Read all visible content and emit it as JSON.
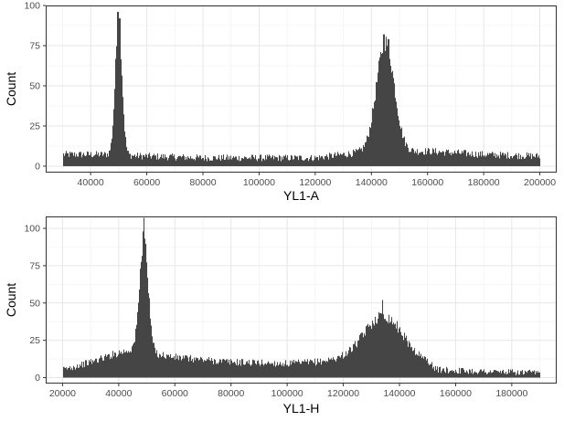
{
  "chart_data": [
    {
      "type": "histogram",
      "xlabel": "YL1-A",
      "ylabel": "Count",
      "xlim": [
        24000,
        206000
      ],
      "ylim": [
        -4,
        100
      ],
      "xticks": [
        40000,
        60000,
        80000,
        100000,
        120000,
        140000,
        160000,
        180000,
        200000
      ],
      "yticks": [
        0,
        25,
        50,
        75,
        100
      ],
      "grid": true,
      "bar_color": "#454545",
      "range": [
        30000,
        200000
      ],
      "baseline": [
        [
          30000,
          5
        ],
        [
          45000,
          5
        ],
        [
          60000,
          4
        ],
        [
          80000,
          3
        ],
        [
          100000,
          3
        ],
        [
          120000,
          3
        ],
        [
          135000,
          6
        ],
        [
          160000,
          7
        ],
        [
          180000,
          5
        ],
        [
          200000,
          4
        ]
      ],
      "noise": 4,
      "peaks": [
        {
          "center": 50000,
          "height": 80,
          "width": 1200
        },
        {
          "center": 145000,
          "height": 65,
          "width": 3200
        }
      ],
      "spikes": [
        [
          49800,
          96
        ],
        [
          50400,
          92
        ],
        [
          144500,
          82
        ],
        [
          146000,
          79
        ]
      ]
    },
    {
      "type": "histogram",
      "xlabel": "YL1-H",
      "ylabel": "Count",
      "xlim": [
        14000,
        196000
      ],
      "ylim": [
        -4,
        108
      ],
      "xticks": [
        20000,
        40000,
        60000,
        80000,
        100000,
        120000,
        140000,
        160000,
        180000
      ],
      "yticks": [
        0,
        25,
        50,
        75,
        100
      ],
      "grid": true,
      "bar_color": "#454545",
      "range": [
        20000,
        190000
      ],
      "baseline": [
        [
          20000,
          3
        ],
        [
          30000,
          8
        ],
        [
          40000,
          14
        ],
        [
          45000,
          16
        ],
        [
          60000,
          11
        ],
        [
          80000,
          8
        ],
        [
          100000,
          7
        ],
        [
          110000,
          8
        ],
        [
          120000,
          10
        ],
        [
          140000,
          12
        ],
        [
          150000,
          8
        ],
        [
          153000,
          3
        ],
        [
          170000,
          2
        ],
        [
          190000,
          1
        ]
      ],
      "noise": 4,
      "peaks": [
        {
          "center": 49000,
          "height": 72,
          "width": 1500
        },
        {
          "center": 134000,
          "height": 26,
          "width": 6500
        }
      ],
      "spikes": [
        [
          49000,
          107
        ],
        [
          48700,
          98
        ],
        [
          134000,
          52
        ]
      ]
    }
  ]
}
